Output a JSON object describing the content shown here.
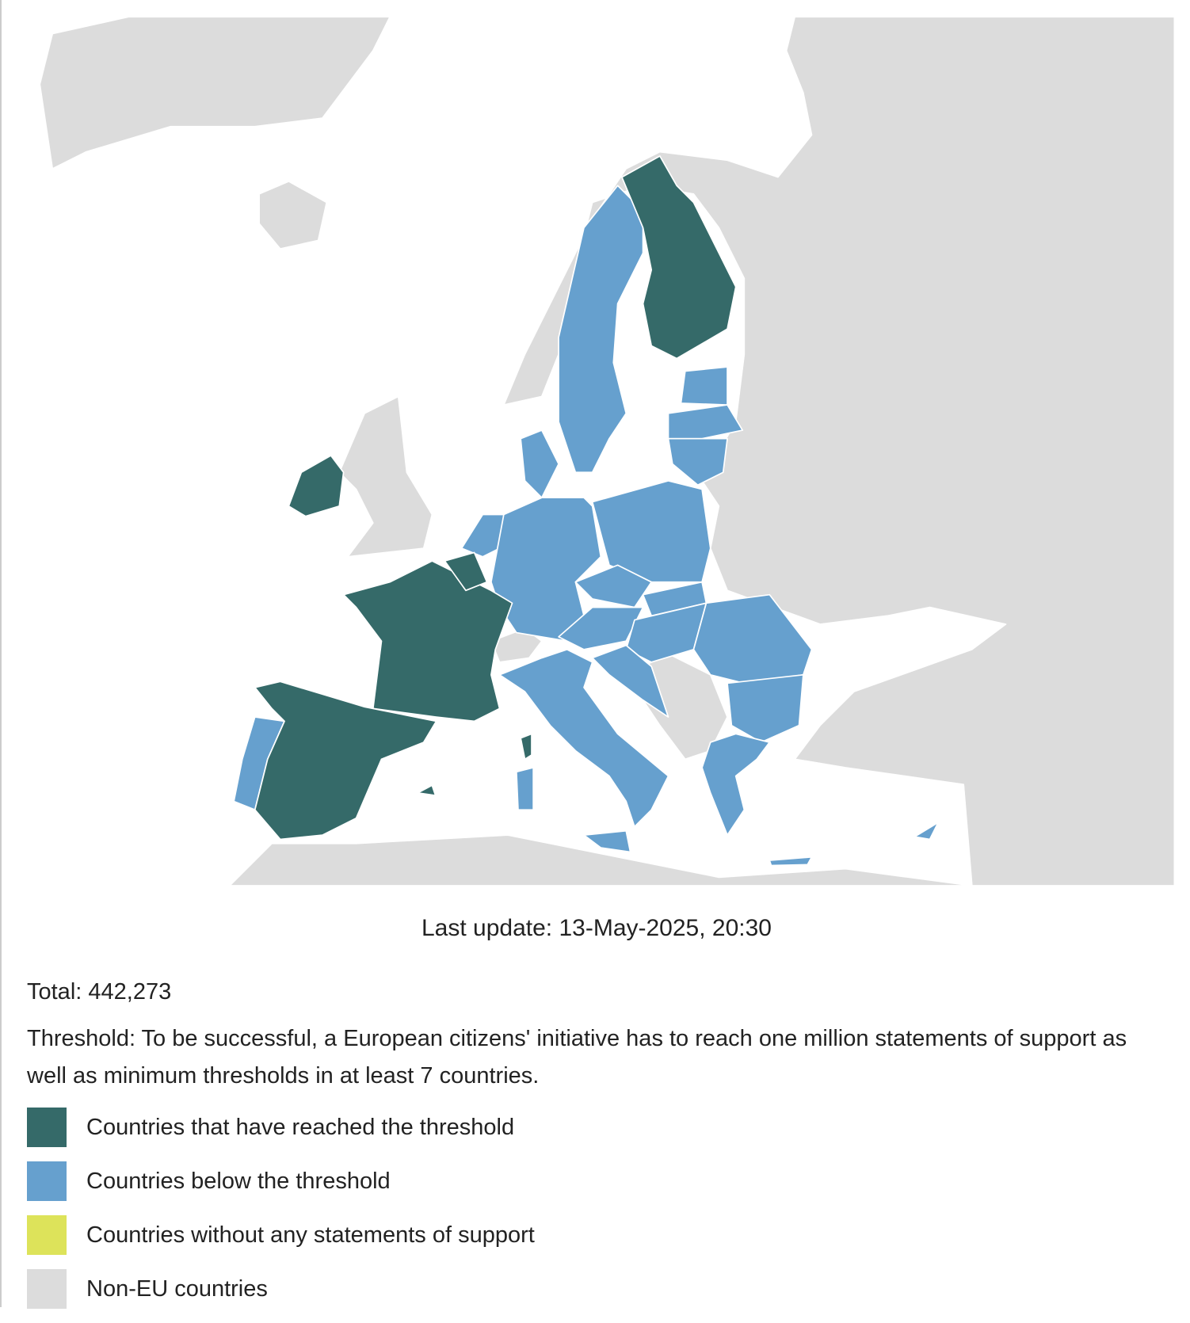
{
  "map": {
    "last_update": "Last update: 13-May-2025, 20:30"
  },
  "summary": {
    "total": "Total: 442,273",
    "threshold": "Threshold: To be successful, a European citizens' initiative has to reach one million statements of support as well as minimum thresholds in at least 7 countries."
  },
  "legend": [
    {
      "label": "Countries that have reached the threshold",
      "color": "#356a69"
    },
    {
      "label": "Countries below the threshold",
      "color": "#66a0ce"
    },
    {
      "label": "Countries without any statements of support",
      "color": "#dde35a"
    },
    {
      "label": "Non-EU countries",
      "color": "#dcdcdc"
    }
  ]
}
